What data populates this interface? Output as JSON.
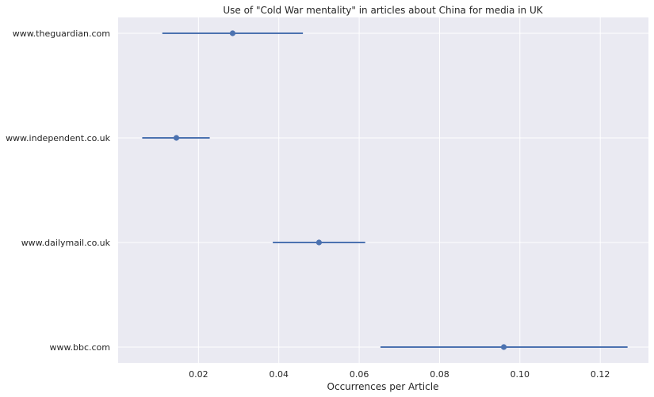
{
  "chart_data": {
    "type": "errorbar",
    "title": "Use of \"Cold War mentality\" in articles about China for media in UK",
    "xlabel": "Occurrences per Article",
    "ylabel": "",
    "xlim": [
      0.0,
      0.132
    ],
    "x_ticks": [
      0.02,
      0.04,
      0.06,
      0.08,
      0.1,
      0.12
    ],
    "x_tick_labels": [
      "0.02",
      "0.04",
      "0.06",
      "0.08",
      "0.10",
      "0.12"
    ],
    "grid": true,
    "categories": [
      "www.theguardian.com",
      "www.independent.co.uk",
      "www.dailymail.co.uk",
      "www.bbc.com"
    ],
    "series": [
      {
        "values": [
          0.0285,
          0.0145,
          0.05,
          0.096
        ],
        "lower": [
          0.011,
          0.006,
          0.0385,
          0.0653
        ],
        "upper": [
          0.046,
          0.0228,
          0.0615,
          0.1268
        ]
      }
    ],
    "color": "#4c72b0"
  }
}
